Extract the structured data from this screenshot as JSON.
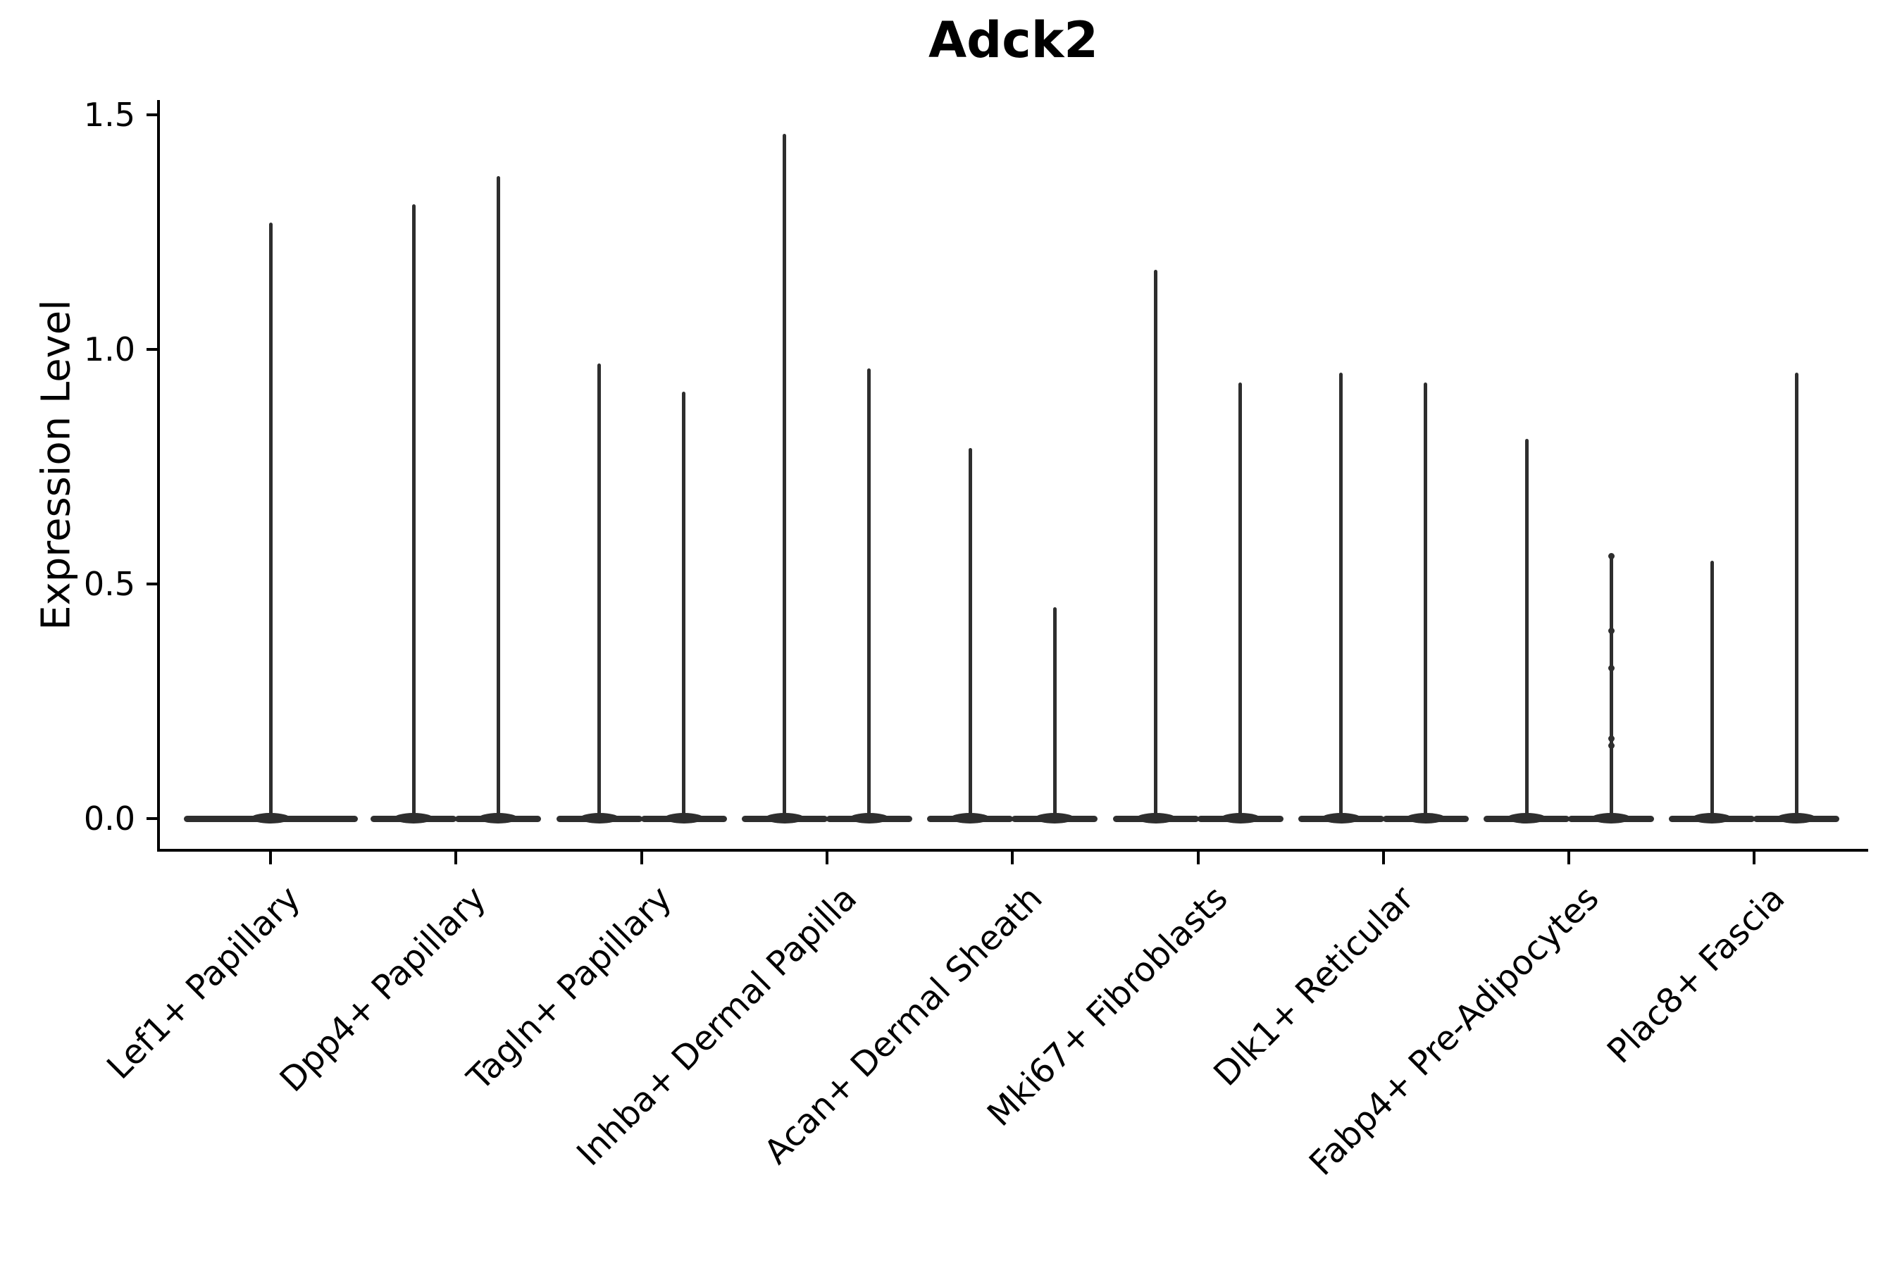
{
  "title": "Adck2",
  "chart_data": {
    "type": "violin",
    "title": "Adck2",
    "ylabel": "Expression Level",
    "xlabel": "",
    "ylim": [
      -0.065,
      1.53
    ],
    "yticks": [
      0.0,
      0.5,
      1.0,
      1.5
    ],
    "ytick_labels": [
      "0.0",
      "0.5",
      "1.0",
      "1.5"
    ],
    "grid": false,
    "legend": "none",
    "violin_color": "#2e2e2e",
    "axis_color": "#000000",
    "baseline_value": 0.0,
    "description_of_shape": "Each violin is collapsed at expression 0 (wide flat base) with a thin vertical density spike rising to the maximum expression value; categories with two violins show two side-by-side spikes.",
    "categories": [
      "Lef1+ Papillary",
      "Dpp4+ Papillary",
      "Tagln+ Papillary",
      "Inhba+ Dermal Papilla",
      "Acan+ Dermal Sheath",
      "Mki67+ Fibroblasts",
      "Dlk1+ Reticular",
      "Fabp4+ Pre-Adipocytes",
      "Plac8+ Fascia"
    ],
    "series": [
      {
        "category": "Lef1+ Papillary",
        "violin_max_values": [
          1.27
        ]
      },
      {
        "category": "Dpp4+ Papillary",
        "violin_max_values": [
          1.31,
          1.37
        ]
      },
      {
        "category": "Tagln+ Papillary",
        "violin_max_values": [
          0.97,
          0.91
        ]
      },
      {
        "category": "Inhba+ Dermal Papilla",
        "violin_max_values": [
          1.46,
          0.96
        ]
      },
      {
        "category": "Acan+ Dermal Sheath",
        "violin_max_values": [
          0.79,
          0.45
        ]
      },
      {
        "category": "Mki67+ Fibroblasts",
        "violin_max_values": [
          1.17,
          0.93
        ]
      },
      {
        "category": "Dlk1+ Reticular",
        "violin_max_values": [
          0.95,
          0.93
        ]
      },
      {
        "category": "Fabp4+ Pre-Adipocytes",
        "violin_max_values": [
          0.81,
          0.56
        ]
      },
      {
        "category": "Plac8+ Fascia",
        "violin_max_values": [
          0.55,
          0.95
        ]
      }
    ],
    "jitter_points": [
      {
        "category_index": 7,
        "violin_index": 1,
        "values": [
          0.56,
          0.4,
          0.32,
          0.17,
          0.155
        ]
      }
    ]
  }
}
